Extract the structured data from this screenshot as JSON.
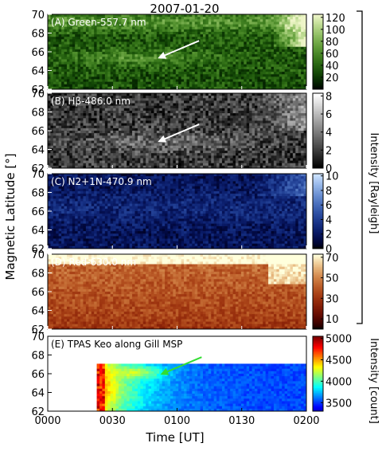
{
  "chart_data": {
    "type": "heatmap",
    "title": "2007-01-20",
    "xlabel": "Time [UT]",
    "ylabel": "Magnetic Latitude [°]",
    "x_ticks": [
      "0000",
      "0030",
      "0100",
      "0130",
      "0200"
    ],
    "xlim_hours": [
      0,
      2
    ],
    "ylim": [
      62,
      70
    ],
    "y_ticks": [
      62,
      64,
      66,
      68,
      70
    ],
    "shared_colorbar_label": "Intensity [Rayleigh]",
    "panels": [
      {
        "label": "(A) Green-557.7 nm",
        "colormap": "green",
        "color_low": "#000000",
        "color_high": "#eef5c8",
        "colorbar_ticks": [
          20,
          40,
          60,
          80,
          100,
          120
        ],
        "clim": [
          0,
          125
        ],
        "annotation": {
          "type": "arrow",
          "color": "#ffffff",
          "target": {
            "time_hours": 0.85,
            "lat": 65.3
          }
        }
      },
      {
        "label": "(B) Hβ-486.0 nm",
        "colormap": "gray",
        "color_low": "#000000",
        "color_high": "#ffffff",
        "colorbar_ticks": [
          0,
          2,
          4,
          6,
          8
        ],
        "clim": [
          0,
          8.3
        ],
        "annotation": {
          "type": "arrow",
          "color": "#ffffff",
          "target": {
            "time_hours": 0.85,
            "lat": 64.8
          }
        }
      },
      {
        "label": "(C) N2+1N-470.9 nm",
        "colormap": "blue",
        "color_low": "#000000",
        "color_high": "#cde3ff",
        "colorbar_ticks": [
          0,
          2,
          4,
          6,
          8,
          10
        ],
        "clim": [
          0,
          10.3
        ]
      },
      {
        "label": "(D) Red-630.0 nm",
        "colormap": "red",
        "color_low": "#000000",
        "color_high": "#ffffdc",
        "colorbar_ticks": [
          10,
          30,
          50,
          70
        ],
        "clim": [
          0,
          73
        ]
      },
      {
        "label": "(E) TPAS Keo along Gill MSP",
        "colormap": "jet",
        "colorbar_label": "Intensity [count]",
        "colorbar_ticks": [
          3500,
          4000,
          4500,
          5000
        ],
        "clim": [
          3300,
          5050
        ],
        "data_extent": {
          "time_hours": [
            0.37,
            2.0
          ],
          "lat": [
            62,
            67
          ]
        },
        "annotation": {
          "type": "arrow",
          "color": "#33dd33",
          "target": {
            "time_hours": 0.87,
            "lat": 65.9
          }
        }
      }
    ]
  }
}
